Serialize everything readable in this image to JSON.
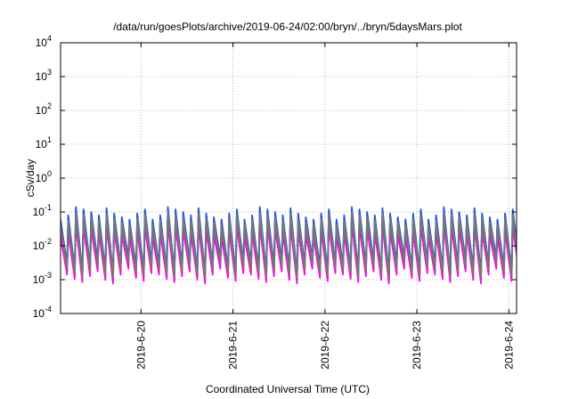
{
  "chart_data": {
    "type": "line",
    "title": "/data/run/goesPlots/archive/2019-06-24/02:00/bryn/../bryn/5daysMars.plot",
    "xlabel": "Coordinated Universal Time (UTC)",
    "ylabel": "cSv/day",
    "yscale": "log",
    "ylim": [
      "1e-4",
      "1e4"
    ],
    "xlim": [
      "2019-06-19T03:00",
      "2019-06-24T02:00"
    ],
    "grid": true,
    "y_ticks": [
      {
        "base": "10",
        "exp": "-4"
      },
      {
        "base": "10",
        "exp": "-3"
      },
      {
        "base": "10",
        "exp": "-2"
      },
      {
        "base": "10",
        "exp": "-1"
      },
      {
        "base": "10",
        "exp": "0"
      },
      {
        "base": "10",
        "exp": "1"
      },
      {
        "base": "10",
        "exp": "2"
      },
      {
        "base": "10",
        "exp": "3"
      },
      {
        "base": "10",
        "exp": "4"
      }
    ],
    "x_ticks": [
      "2019-6-20",
      "2019-6-21",
      "2019-6-22",
      "2019-6-23",
      "2019-6-24"
    ],
    "x_tick_dates": [
      "2019-06-20",
      "2019-06-21",
      "2019-06-22",
      "2019-06-23",
      "2019-06-24"
    ],
    "sawtooth": {
      "period_hours": 2,
      "peak_values": [
        0.06,
        0.08,
        0.14,
        0.12,
        0.1,
        0.08,
        0.13,
        0.09,
        0.07,
        0.06,
        0.09,
        0.12
      ],
      "trough_values": [
        0.002,
        0.0015,
        0.0012,
        0.0018,
        0.0025,
        0.0014,
        0.0011,
        0.002,
        0.003,
        0.0016,
        0.0013,
        0.0022
      ]
    },
    "series": [
      {
        "color": "#ff00ff",
        "level": 0.3
      },
      {
        "color": "#aa33cc",
        "level": 0.5
      },
      {
        "color": "#ff3366",
        "level": 0.6
      },
      {
        "color": "#33aa66",
        "level": 0.75
      },
      {
        "color": "#00aaee",
        "level": 0.9
      },
      {
        "color": "#2255dd",
        "level": 1.0
      },
      {
        "color": "#777777",
        "level": 0.7
      }
    ]
  }
}
